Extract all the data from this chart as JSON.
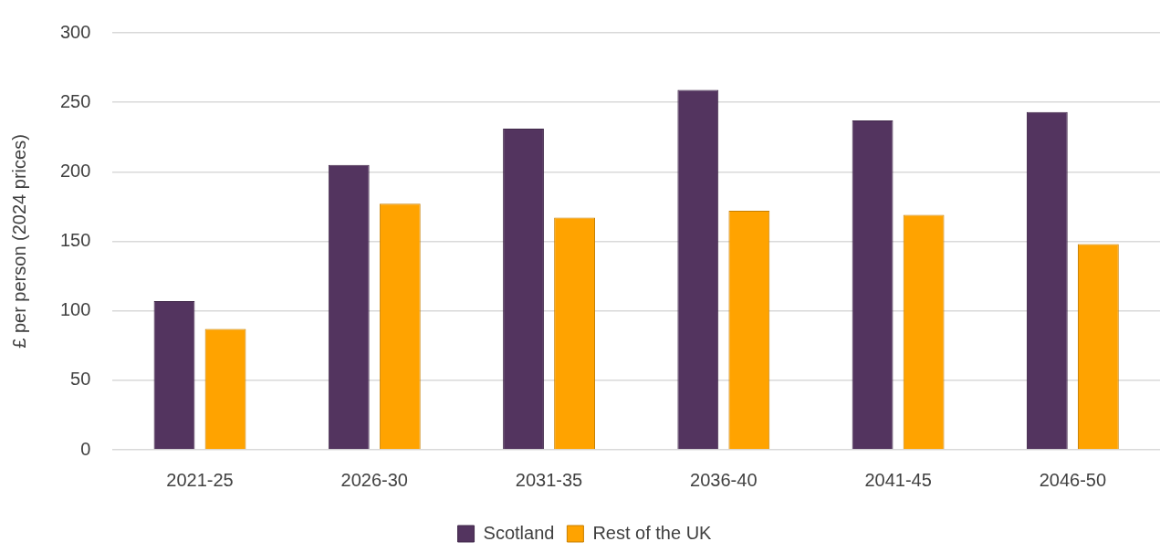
{
  "chart_data": {
    "type": "bar",
    "ylabel": "£ per person (2024 prices)",
    "categories": [
      "2021-25",
      "2026-30",
      "2031-35",
      "2036-40",
      "2041-45",
      "2046-50"
    ],
    "series": [
      {
        "name": "Scotland",
        "color": "#53345f",
        "values": [
          107,
          205,
          231,
          259,
          237,
          243
        ]
      },
      {
        "name": "Rest of the UK",
        "color": "#ffa300",
        "values": [
          87,
          177,
          167,
          172,
          169,
          148
        ]
      }
    ],
    "ylim": [
      0,
      300
    ],
    "yticks": [
      0,
      50,
      100,
      150,
      200,
      250,
      300
    ],
    "grid": "y",
    "legend": "bottom"
  }
}
